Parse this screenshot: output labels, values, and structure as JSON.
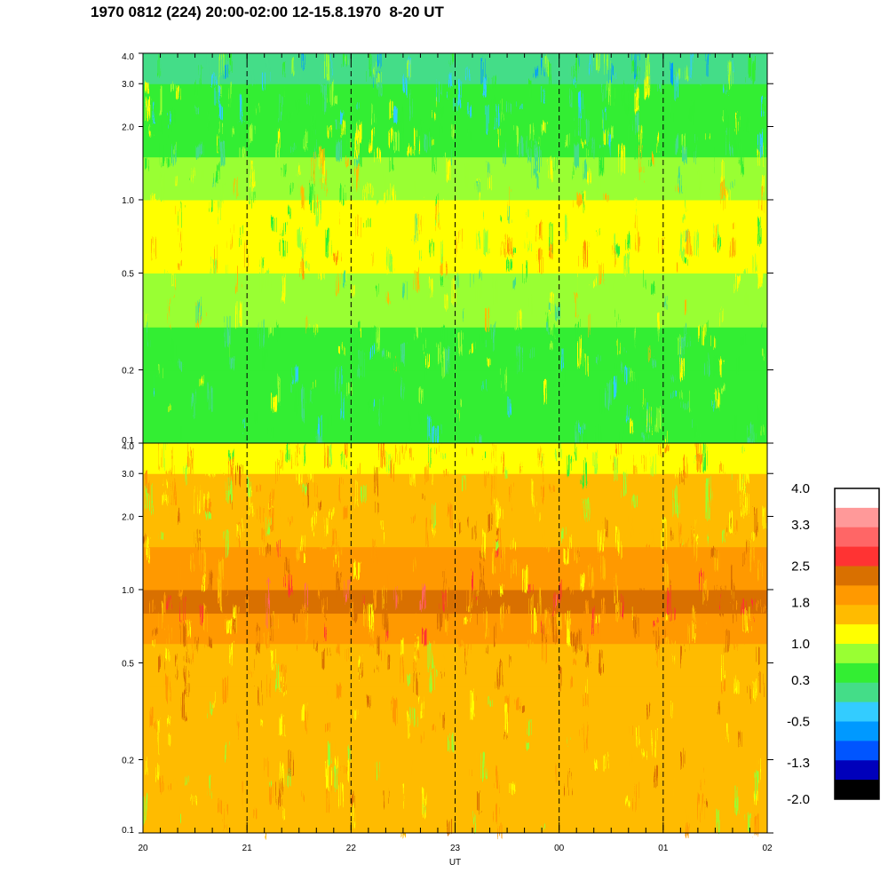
{
  "title": "1970 0812 (224) 20:00-02:00 12-15.8.1970  8-20 UT",
  "chart_data": {
    "type": "heatmap",
    "title": "1970 0812 (224) 20:00-02:00 12-15.8.1970  8-20 UT",
    "xlabel": "UT",
    "ylabel": "",
    "x_tick_labels": [
      "20",
      "21",
      "22",
      "23",
      "00",
      "01",
      "02"
    ],
    "x_range_hours": [
      20,
      26
    ],
    "dashed_lines_hours": [
      21,
      22,
      23,
      24,
      25
    ],
    "y_scale": "log",
    "y_range": [
      0.1,
      4.0
    ],
    "y_tick_labels": [
      "0.1",
      "0.2",
      "0.5",
      "1.0",
      "2.0",
      "3.0",
      "4.0"
    ],
    "panels": [
      {
        "name": "upper",
        "profile": [
          {
            "freq": 0.1,
            "value": 0.4
          },
          {
            "freq": 0.2,
            "value": 0.6
          },
          {
            "freq": 0.3,
            "value": 0.8
          },
          {
            "freq": 0.5,
            "value": 1.2
          },
          {
            "freq": 0.7,
            "value": 1.0
          },
          {
            "freq": 1.0,
            "value": 0.9
          },
          {
            "freq": 1.5,
            "value": 0.6
          },
          {
            "freq": 2.0,
            "value": 0.3
          },
          {
            "freq": 3.0,
            "value": 0.1
          },
          {
            "freq": 4.0,
            "value": 0.1
          }
        ]
      },
      {
        "name": "lower",
        "profile": [
          {
            "freq": 0.1,
            "value": 1.5
          },
          {
            "freq": 0.2,
            "value": 1.6
          },
          {
            "freq": 0.4,
            "value": 1.7
          },
          {
            "freq": 0.6,
            "value": 1.9
          },
          {
            "freq": 0.8,
            "value": 2.3
          },
          {
            "freq": 1.0,
            "value": 1.9
          },
          {
            "freq": 1.5,
            "value": 1.6
          },
          {
            "freq": 2.0,
            "value": 1.5
          },
          {
            "freq": 3.0,
            "value": 1.3
          },
          {
            "freq": 4.0,
            "value": 1.1
          }
        ]
      }
    ],
    "colorbar": {
      "labels": [
        "4.0",
        "3.3",
        "2.5",
        "1.8",
        "1.0",
        "0.3",
        "-0.5",
        "-1.3",
        "-2.0"
      ],
      "label_values": [
        4.0,
        3.3,
        2.5,
        1.8,
        1.0,
        0.3,
        -0.5,
        -1.3,
        -2.0
      ],
      "range": [
        -2.0,
        4.0
      ],
      "colors_top_to_bottom": [
        "#ffffff",
        "#ff9999",
        "#ff6666",
        "#ff3333",
        "#d97000",
        "#ff9900",
        "#ffbb00",
        "#ffff00",
        "#99ff33",
        "#33ee33",
        "#44dd88",
        "#33ccff",
        "#0099ff",
        "#0055ff",
        "#0000bb",
        "#000000"
      ]
    }
  }
}
